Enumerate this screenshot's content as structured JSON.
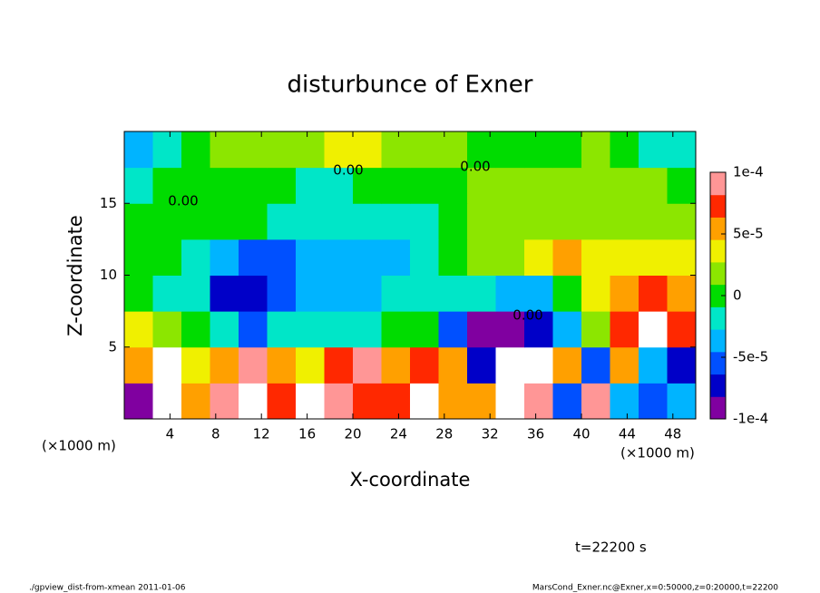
{
  "chart_data": {
    "type": "heatmap",
    "title": "disturbunce of Exner",
    "x_label": "X-coordinate",
    "y_label": "Z-coordinate",
    "x_unit_left": "(×1000 m)",
    "x_unit_right": "(×1000 m)",
    "time_label": "t=22200 s",
    "footer_left": "./gpview_dist-from-xmean  2011-01-06",
    "footer_right": "MarsCond_Exner.nc@Exner,x=0:50000,z=0:20000,t=22200",
    "contour_labels": [
      "0.00",
      "0.00",
      "0.00",
      "0.00"
    ],
    "xlim": [
      0,
      50
    ],
    "ylim": [
      0,
      20
    ],
    "xticks": [
      4,
      8,
      12,
      16,
      20,
      24,
      28,
      32,
      36,
      40,
      44,
      48
    ],
    "yticks": [
      5,
      10,
      15
    ],
    "xbins": [
      0,
      2.5,
      5,
      7.5,
      10,
      12.5,
      15,
      17.5,
      20,
      22.5,
      25,
      27.5,
      30,
      32.5,
      35,
      37.5,
      40,
      42.5,
      45,
      47.5,
      50
    ],
    "ybins": [
      0,
      2.5,
      5,
      7.5,
      10,
      12.5,
      15,
      17.5,
      20
    ],
    "values": [
      [
        -9e-05,
        0.00012,
        6e-05,
        9e-05,
        0.00011,
        8e-05,
        0.00012,
        0.0001,
        7e-05,
        8e-05,
        0.00011,
        6e-05,
        6e-05,
        0.00012,
        9e-05,
        -6e-05,
        9e-05,
        -4e-05,
        -5e-05,
        -3e-05
      ],
      [
        6e-05,
        0.00011,
        4e-05,
        6e-05,
        0.0001,
        5e-05,
        4e-05,
        7e-05,
        9e-05,
        6e-05,
        8e-05,
        5e-05,
        -8e-05,
        0.00012,
        0.00012,
        6e-05,
        -6e-05,
        5e-05,
        -3e-05,
        -7e-05
      ],
      [
        3e-05,
        2e-05,
        0,
        -2e-05,
        -5e-05,
        -2e-05,
        -2e-05,
        -1e-05,
        -1e-05,
        0,
        0,
        -6e-05,
        -9e-05,
        -9e-05,
        -7e-05,
        -3e-05,
        2e-05,
        8e-05,
        0.00012,
        8e-05
      ],
      [
        0,
        -1e-05,
        -2e-05,
        -7e-05,
        -8e-05,
        -5e-05,
        -3e-05,
        -3e-05,
        -3e-05,
        -2e-05,
        -1e-05,
        -1e-05,
        -2e-05,
        -3e-05,
        -3e-05,
        0,
        3e-05,
        6e-05,
        7e-05,
        5e-05
      ],
      [
        0,
        0,
        -1e-05,
        -3e-05,
        -6e-05,
        -5e-05,
        -3e-05,
        -3e-05,
        -4e-05,
        -3e-05,
        -2e-05,
        0,
        1e-05,
        2e-05,
        4e-05,
        5e-05,
        4e-05,
        3e-05,
        4e-05,
        3e-05
      ],
      [
        0,
        0,
        0,
        0,
        0,
        -1e-05,
        -2e-05,
        -2e-05,
        -2e-05,
        -1e-05,
        -1e-05,
        0,
        1e-05,
        1e-05,
        2e-05,
        2e-05,
        2e-05,
        2e-05,
        2e-05,
        1e-05
      ],
      [
        -1e-05,
        0,
        0,
        0,
        0,
        0,
        -1e-05,
        -1e-05,
        0,
        0,
        0,
        0,
        1e-05,
        1e-05,
        1e-05,
        2e-05,
        2e-05,
        1e-05,
        1e-05,
        0
      ],
      [
        -3e-05,
        -1e-05,
        0,
        1e-05,
        1e-05,
        2e-05,
        2e-05,
        3e-05,
        3e-05,
        2e-05,
        1e-05,
        1e-05,
        0,
        0,
        0,
        0,
        1e-05,
        0,
        -1e-05,
        -2e-05
      ]
    ],
    "clim": [
      -0.0001,
      0.0001
    ],
    "cticks": [
      {
        "value": 0.0001,
        "label": "1e-4"
      },
      {
        "value": 5e-05,
        "label": "5e-5"
      },
      0,
      {
        "value": -5e-05,
        "label": "-5e-5"
      },
      {
        "value": -0.0001,
        "label": "-1e-4"
      }
    ],
    "colorscale": [
      "#8000a0",
      "#0000c8",
      "#0050ff",
      "#00b4ff",
      "#00e6c8",
      "#00dc00",
      "#8ce600",
      "#f0f000",
      "#ffa000",
      "#ff2800",
      "#ff9696"
    ],
    "out_of_range_color": "#ffffff"
  }
}
